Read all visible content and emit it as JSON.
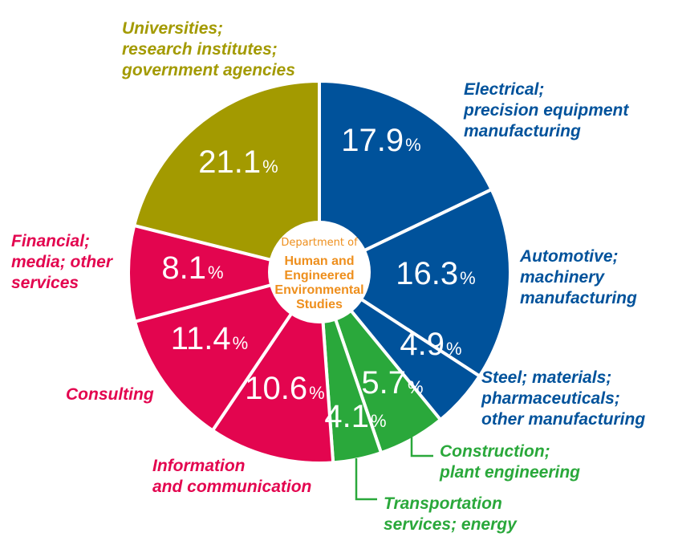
{
  "chart_data": {
    "type": "pie",
    "center": {
      "line1": "Department of",
      "name_lines": [
        "Human and",
        "Engineered",
        "Environmental",
        "Studies"
      ]
    },
    "slices": [
      {
        "label": "Electrical; precision equipment manufacturing",
        "label_lines": [
          "Electrical;",
          "precision equipment",
          "manufacturing"
        ],
        "value": 17.9,
        "display": "17.9",
        "color": "#00529b",
        "label_color": "#00529b"
      },
      {
        "label": "Automotive; machinery manufacturing",
        "label_lines": [
          "Automotive;",
          "machinery",
          "manufacturing"
        ],
        "value": 16.3,
        "display": "16.3",
        "color": "#00529b",
        "label_color": "#00529b"
      },
      {
        "label": "Steel; materials; pharmaceuticals; other manufacturing",
        "label_lines": [
          "Steel; materials;",
          "pharmaceuticals;",
          "other manufacturing"
        ],
        "value": 4.9,
        "display": "4.9",
        "color": "#00529b",
        "label_color": "#00529b"
      },
      {
        "label": "Construction; plant engineering",
        "label_lines": [
          "Construction;",
          "plant engineering"
        ],
        "value": 5.7,
        "display": "5.7",
        "color": "#2aa83b",
        "label_color": "#2aa83b"
      },
      {
        "label": "Transportation services; energy",
        "label_lines": [
          "Transportation",
          "services; energy"
        ],
        "value": 4.1,
        "display": "4.1",
        "color": "#2aa83b",
        "label_color": "#2aa83b"
      },
      {
        "label": "Information and communication",
        "label_lines": [
          "Information",
          "and communication"
        ],
        "value": 10.6,
        "display": "10.6",
        "color": "#e3054f",
        "label_color": "#e3054f"
      },
      {
        "label": "Consulting",
        "label_lines": [
          "Consulting"
        ],
        "value": 11.4,
        "display": "11.4",
        "color": "#e3054f",
        "label_color": "#e3054f"
      },
      {
        "label": "Financial; media; other services",
        "label_lines": [
          "Financial;",
          "media; other",
          "services"
        ],
        "value": 8.1,
        "display": "8.1",
        "color": "#e3054f",
        "label_color": "#e3054f"
      },
      {
        "label": "Universities; research institutes; government agencies",
        "label_lines": [
          "Universities;",
          "research institutes;",
          "government agencies"
        ],
        "value": 21.1,
        "display": "21.1",
        "color": "#a39a00",
        "label_color": "#a39a00"
      }
    ],
    "percent_sign": "%"
  }
}
